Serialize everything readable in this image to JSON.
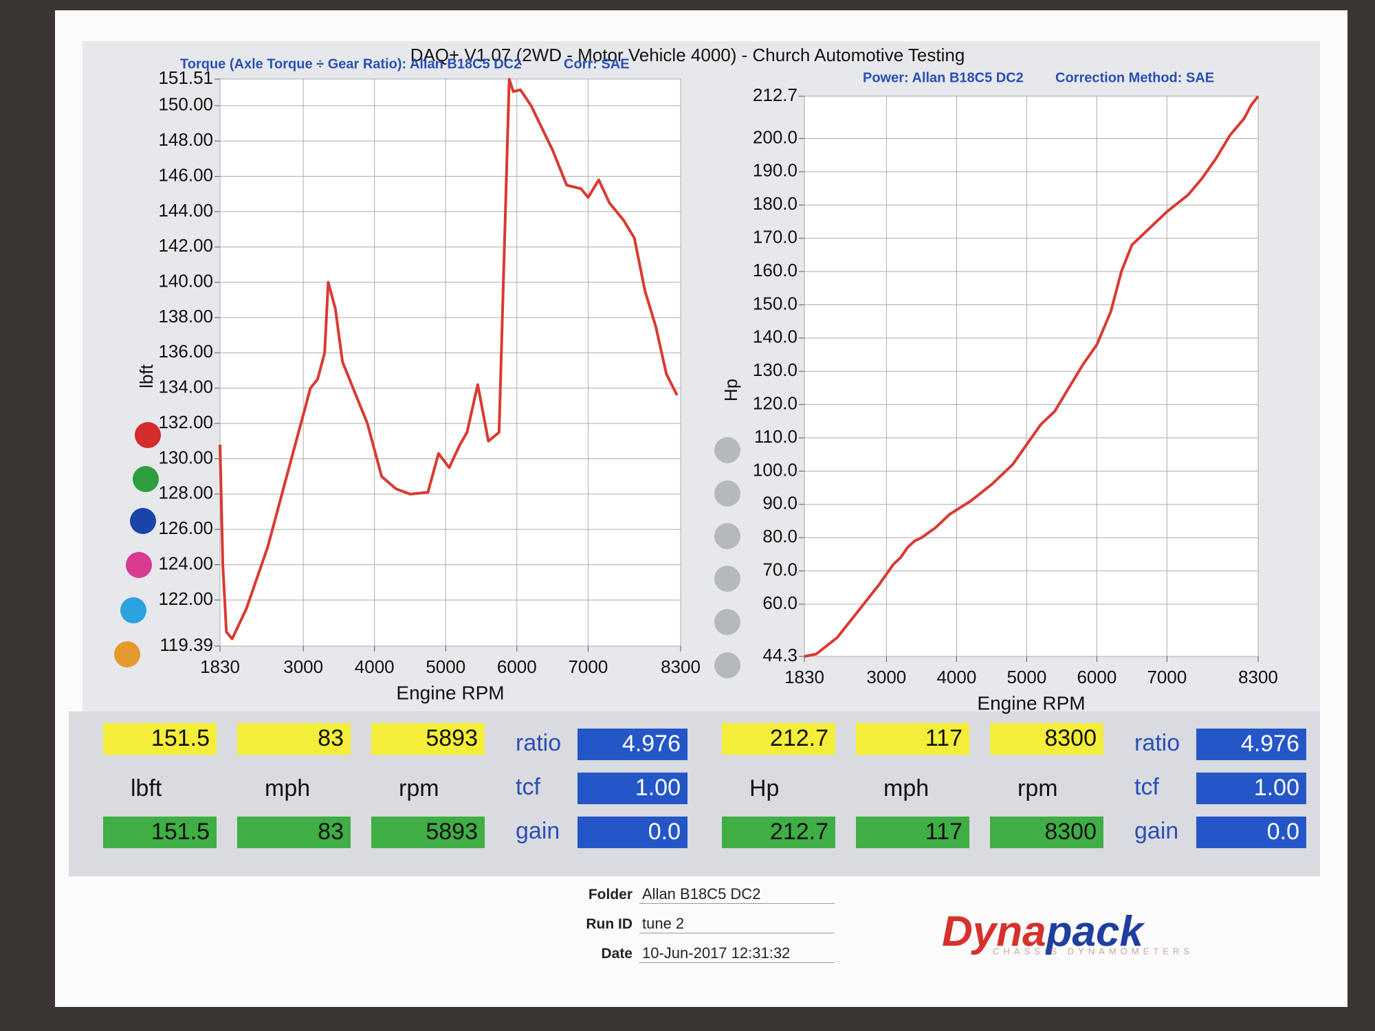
{
  "header": {
    "title": "DAQ+ V1.07 (2WD - Motor Vehicle 4000) - Church Automotive Testing"
  },
  "chart_data": [
    {
      "type": "line",
      "title": "Torque (Axle Torque ÷ Gear Ratio): Allan B18C5 DC2",
      "correction": "Corr: SAE",
      "y_label": "lbft",
      "x_label": "Engine RPM",
      "color": "#d93a32",
      "grid": true,
      "x": [
        1830,
        1870,
        1920,
        2000,
        2200,
        2500,
        2800,
        3000,
        3100,
        3200,
        3300,
        3350,
        3450,
        3550,
        3700,
        3900,
        4100,
        4300,
        4500,
        4750,
        4900,
        5050,
        5200,
        5300,
        5450,
        5600,
        5750,
        5893,
        5950,
        6050,
        6200,
        6500,
        6700,
        6900,
        7000,
        7150,
        7300,
        7500,
        7650,
        7800,
        7950,
        8100,
        8250
      ],
      "values": [
        130.8,
        124,
        120.2,
        119.8,
        121.5,
        125,
        129.5,
        132.5,
        134,
        134.5,
        136,
        140,
        138.5,
        135.5,
        134,
        132,
        129,
        128.3,
        128,
        128.1,
        130.3,
        129.5,
        130.8,
        131.5,
        134.2,
        131,
        131.5,
        151.5,
        150.8,
        150.9,
        150,
        147.5,
        145.5,
        145.3,
        144.8,
        145.8,
        144.5,
        143.5,
        142.5,
        139.5,
        137.5,
        134.8,
        133.6
      ],
      "xlim": [
        1830,
        8300
      ],
      "xticks": [
        1830,
        3000,
        4000,
        5000,
        6000,
        7000,
        8300
      ],
      "ylim": [
        119.39,
        151.51
      ],
      "yticks": [
        119.39,
        {
          "value": 122,
          "label": "122.00"
        },
        {
          "value": 124,
          "label": "124.00"
        },
        {
          "value": 126,
          "label": "126.00"
        },
        {
          "value": 128,
          "label": "128.00"
        },
        {
          "value": 130,
          "label": "130.00"
        },
        {
          "value": 132,
          "label": "132.00"
        },
        {
          "value": 134,
          "label": "134.00"
        },
        {
          "value": 136,
          "label": "136.00"
        },
        {
          "value": 138,
          "label": "138.00"
        },
        {
          "value": 140,
          "label": "140.00"
        },
        {
          "value": 142,
          "label": "142.00"
        },
        {
          "value": 144,
          "label": "144.00"
        },
        {
          "value": 146,
          "label": "146.00"
        },
        {
          "value": 148,
          "label": "148.00"
        },
        {
          "value": 150,
          "label": "150.00"
        },
        151.51
      ]
    },
    {
      "type": "line",
      "title": "Power: Allan B18C5 DC2",
      "correction": "Correction Method: SAE",
      "y_label": "Hp",
      "x_label": "Engine RPM",
      "color": "#d93a32",
      "grid": true,
      "x": [
        1830,
        2000,
        2300,
        2600,
        2900,
        3100,
        3200,
        3300,
        3400,
        3500,
        3700,
        3900,
        4200,
        4500,
        4800,
        5000,
        5200,
        5400,
        5600,
        5800,
        6000,
        6200,
        6350,
        6500,
        6700,
        7000,
        7300,
        7500,
        7700,
        7900,
        8100,
        8200,
        8300
      ],
      "values": [
        44.3,
        45,
        50,
        58,
        66,
        72,
        74,
        77,
        79,
        80,
        83,
        87,
        91,
        96,
        102,
        108,
        114,
        118,
        125,
        132,
        138,
        148,
        160,
        168,
        172,
        178,
        183,
        188,
        194,
        201,
        206,
        210,
        212.7
      ],
      "xlim": [
        1830,
        8300
      ],
      "xticks": [
        1830,
        3000,
        4000,
        5000,
        6000,
        7000,
        8300
      ],
      "ylim": [
        44.3,
        212.7
      ],
      "yticks": [
        44.3,
        {
          "value": 60,
          "label": "60.0"
        },
        {
          "value": 70,
          "label": "70.0"
        },
        {
          "value": 80,
          "label": "80.0"
        },
        {
          "value": 90,
          "label": "90.0"
        },
        {
          "value": 100,
          "label": "100.0"
        },
        {
          "value": 110,
          "label": "110.0"
        },
        {
          "value": 120,
          "label": "120.0"
        },
        {
          "value": 130,
          "label": "130.0"
        },
        {
          "value": 140,
          "label": "140.0"
        },
        {
          "value": 150,
          "label": "150.0"
        },
        {
          "value": 160,
          "label": "160.0"
        },
        {
          "value": 170,
          "label": "170.0"
        },
        {
          "value": 180,
          "label": "180.0"
        },
        {
          "value": 190,
          "label": "190.0"
        },
        {
          "value": 200,
          "label": "200.0"
        },
        212.7
      ]
    }
  ],
  "readouts": [
    {
      "yellow": [
        "151.5",
        "83",
        "5893"
      ],
      "units": [
        "lbft",
        "mph",
        "rpm"
      ],
      "green": [
        "151.5",
        "83",
        "5893"
      ],
      "params": [
        {
          "label": "ratio",
          "value": "4.976"
        },
        {
          "label": "tcf",
          "value": "1.00"
        },
        {
          "label": "gain",
          "value": "0.0"
        }
      ]
    },
    {
      "yellow": [
        "212.7",
        "117",
        "8300"
      ],
      "units": [
        "Hp",
        "mph",
        "rpm"
      ],
      "green": [
        "212.7",
        "117",
        "8300"
      ],
      "params": [
        {
          "label": "ratio",
          "value": "4.976"
        },
        {
          "label": "tcf",
          "value": "1.00"
        },
        {
          "label": "gain",
          "value": "0.0"
        }
      ]
    }
  ],
  "info": [
    {
      "label": "Folder",
      "value": "Allan B18C5 DC2"
    },
    {
      "label": "Run ID",
      "value": "tune 2"
    },
    {
      "label": "Date",
      "value": "10-Jun-2017 12:31:32"
    }
  ],
  "logo": {
    "name": [
      "Dyna",
      "pack"
    ],
    "tagline": "CHASSIS DYNAMOMETERS"
  }
}
